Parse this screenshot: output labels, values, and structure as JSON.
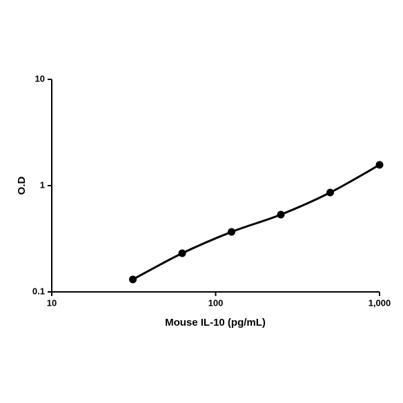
{
  "chart_data": {
    "type": "line",
    "x_label": "Mouse IL-10 (pg/mL)",
    "y_label": "O.D",
    "x": [
      31.25,
      62.5,
      125,
      250,
      500,
      1000
    ],
    "series": [
      {
        "color": "#000000",
        "values": [
          0.131,
          0.231,
          0.367,
          0.534,
          0.861,
          1.57
        ]
      }
    ],
    "xlim": [
      10,
      1000
    ],
    "ylim": [
      0.1,
      10
    ],
    "xticks": [
      10,
      100,
      {
        "value": 1000,
        "label": "1,000"
      }
    ],
    "yticks": [
      0.1,
      1,
      10
    ],
    "x_log": true,
    "y_log": true,
    "grid": false,
    "markers": true
  }
}
